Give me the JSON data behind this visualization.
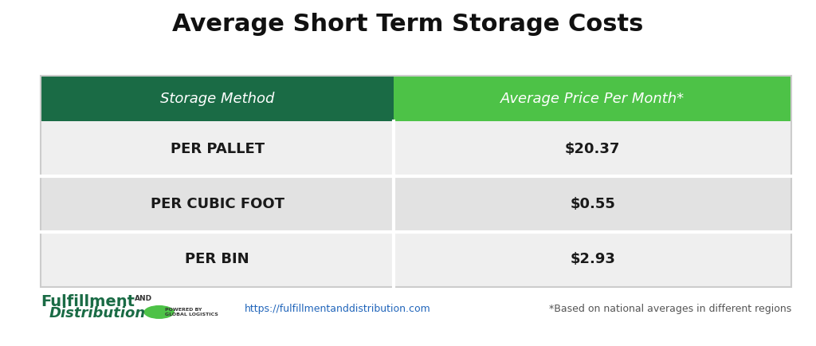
{
  "title": "Average Short Term Storage Costs",
  "title_fontsize": 22,
  "title_fontweight": "bold",
  "col1_header": "Storage Method",
  "col2_header": "Average Price Per Month*",
  "rows": [
    [
      "PER PALLET",
      "$20.37"
    ],
    [
      "PER CUBIC FOOT",
      "$0.55"
    ],
    [
      "PER BIN",
      "$2.93"
    ]
  ],
  "header_col1_color": "#1a6b45",
  "header_col2_color": "#4dc247",
  "header_text_color": "#ffffff",
  "row_bg_color": "#efefef",
  "row_text_color": "#1a1a1a",
  "figure_bg_color": "#ffffff",
  "col_split": 0.47,
  "footer_url": "https://fulfillmentanddistribution.com",
  "footer_note": "*Based on national averages in different regions",
  "footer_logo_text_big": "Fulfillment",
  "footer_logo_text_and": "AND",
  "footer_logo_text_dist": "Distribution",
  "footer_logo_color": "#1a6b45",
  "footer_logo_green2": "#4dc247"
}
